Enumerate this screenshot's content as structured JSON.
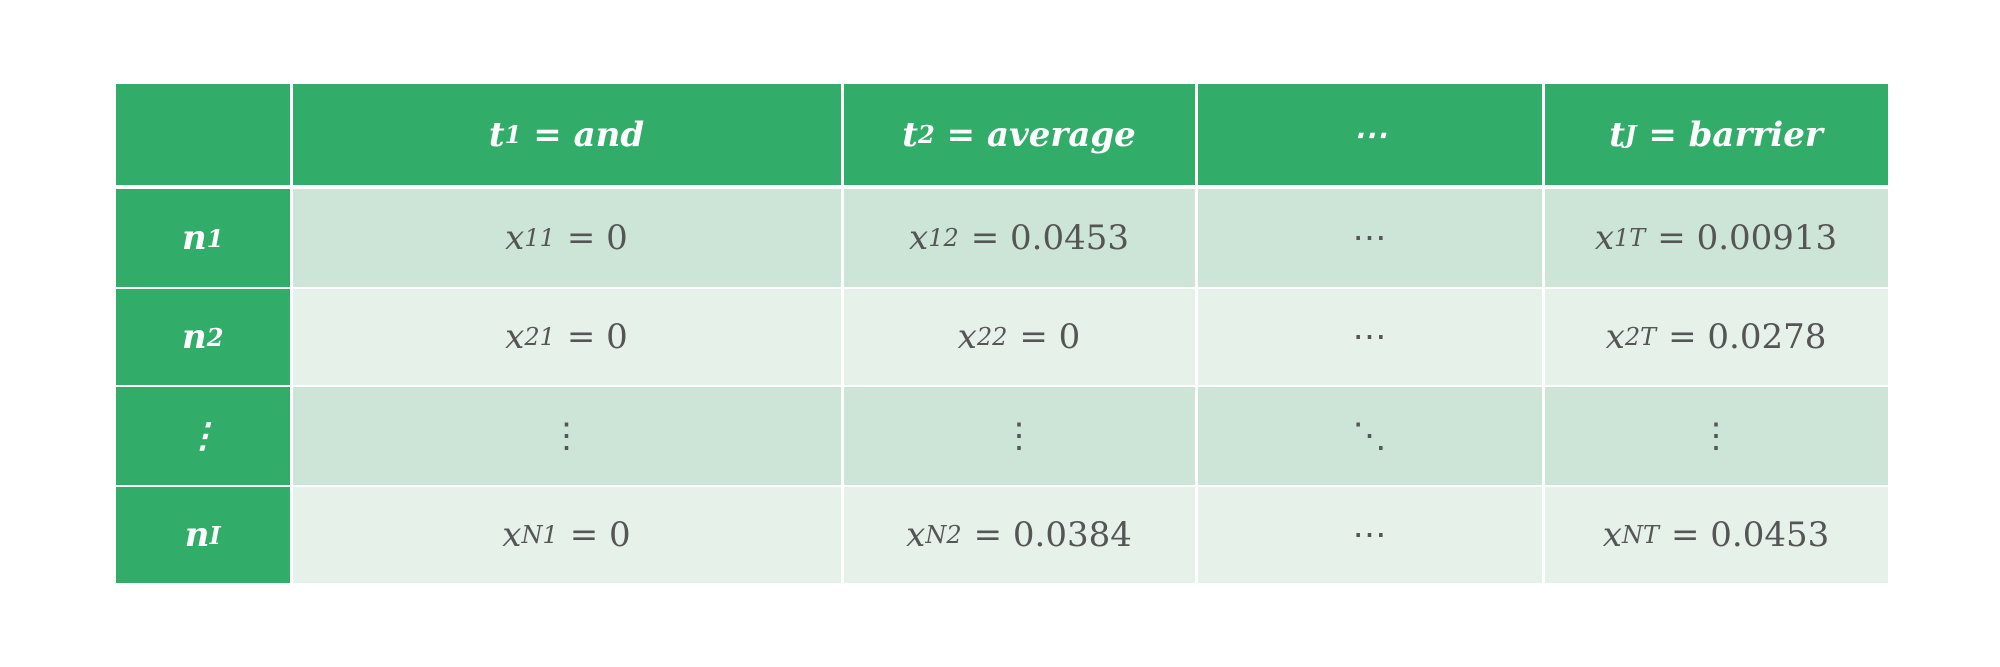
{
  "table": {
    "header": [
      {
        "main": "t",
        "sub": "1",
        "rhs": "= and"
      },
      {
        "main": "t",
        "sub": "2",
        "rhs": "= average"
      },
      {
        "text": "⋯"
      },
      {
        "main": "t",
        "sub": "J",
        "rhs": "= barrier"
      }
    ],
    "rows": [
      {
        "label": {
          "main": "n",
          "sub": "1"
        },
        "cells": [
          {
            "main": "x",
            "sub": "11",
            "rhs": "= 0"
          },
          {
            "main": "x",
            "sub": "12",
            "rhs": "= 0.0453"
          },
          {
            "text": "⋯"
          },
          {
            "main": "x",
            "sub": "1T",
            "rhs": "= 0.00913"
          }
        ]
      },
      {
        "label": {
          "main": "n",
          "sub": "2"
        },
        "cells": [
          {
            "main": "x",
            "sub": "21",
            "rhs": "= 0"
          },
          {
            "main": "x",
            "sub": "22",
            "rhs": "= 0"
          },
          {
            "text": "⋯"
          },
          {
            "main": "x",
            "sub": "2T",
            "rhs": "= 0.0278"
          }
        ]
      },
      {
        "label": {
          "text": "⋮"
        },
        "cells": [
          {
            "text": "⋮"
          },
          {
            "text": "⋮"
          },
          {
            "text": "⋱"
          },
          {
            "text": "⋮"
          }
        ]
      },
      {
        "label": {
          "main": "n",
          "sub": "I"
        },
        "cells": [
          {
            "main": "x",
            "sub": "N1",
            "rhs": "= 0"
          },
          {
            "main": "x",
            "sub": "N2",
            "rhs": "= 0.0384"
          },
          {
            "text": "⋯"
          },
          {
            "main": "x",
            "sub": "NT",
            "rhs": "= 0.0453"
          }
        ]
      }
    ]
  }
}
